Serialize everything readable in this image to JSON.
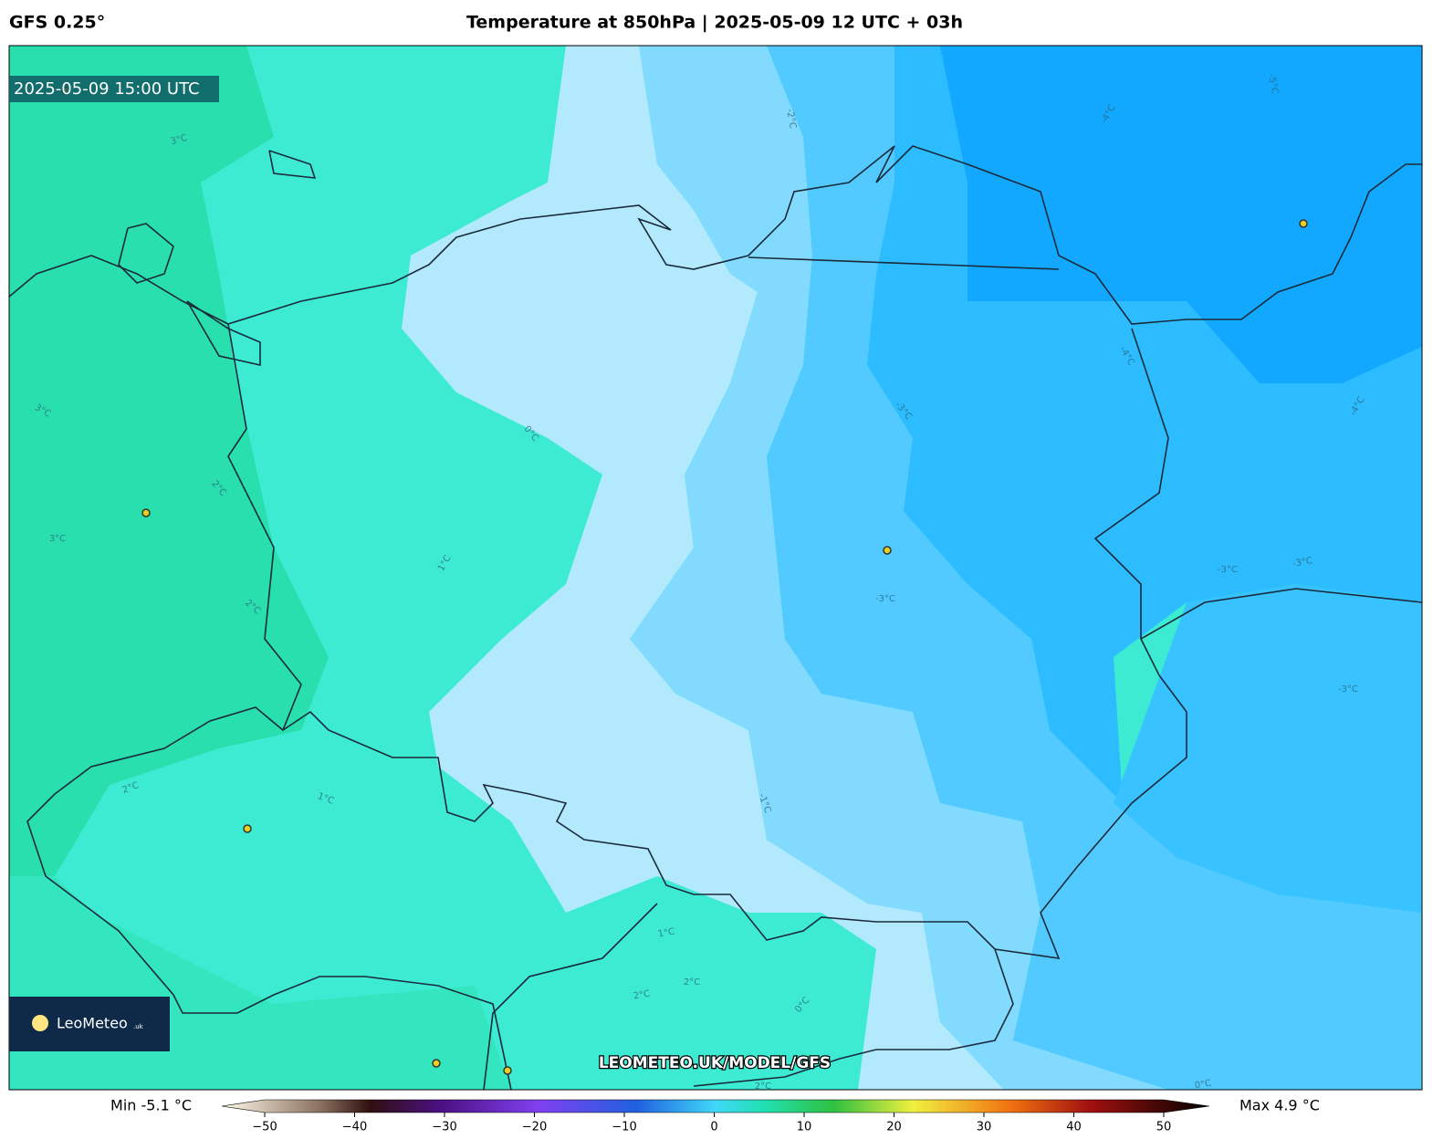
{
  "header": {
    "model": "GFS 0.25°",
    "title": "Temperature at 850hPa | 2025-05-09 12 UTC + 03h"
  },
  "map": {
    "valid_time": "2025-05-09 15:00 UTC",
    "watermark": "LEOMETEO.UK/MODEL/GFS",
    "logo": {
      "name": "LeoMeteo",
      "suffix": ".uk"
    },
    "contour_labels": [
      "3°C",
      "-2°C",
      "-4°C",
      "-5°C",
      "3°C",
      "2°C",
      "3°C",
      "0°C",
      "1°C",
      "2°C",
      "-3°C",
      "-4°C",
      "-4°C",
      "-3°C",
      "-3°C",
      "-3°C",
      "-3°C",
      "-1°C",
      "2°C",
      "1°C",
      "1°C",
      "2°C",
      "2°C",
      "0°C",
      "2°C",
      "0°C"
    ]
  },
  "colorbar": {
    "min_label": "Min -5.1 °C",
    "max_label": "Max 4.9 °C",
    "lim": [
      -50,
      50
    ],
    "ticks": [
      {
        "value": -50,
        "label": "−50"
      },
      {
        "value": -40,
        "label": "−40"
      },
      {
        "value": -30,
        "label": "−30"
      },
      {
        "value": -20,
        "label": "−20"
      },
      {
        "value": -10,
        "label": "−10"
      },
      0,
      10,
      20,
      30,
      40,
      50
    ]
  }
}
